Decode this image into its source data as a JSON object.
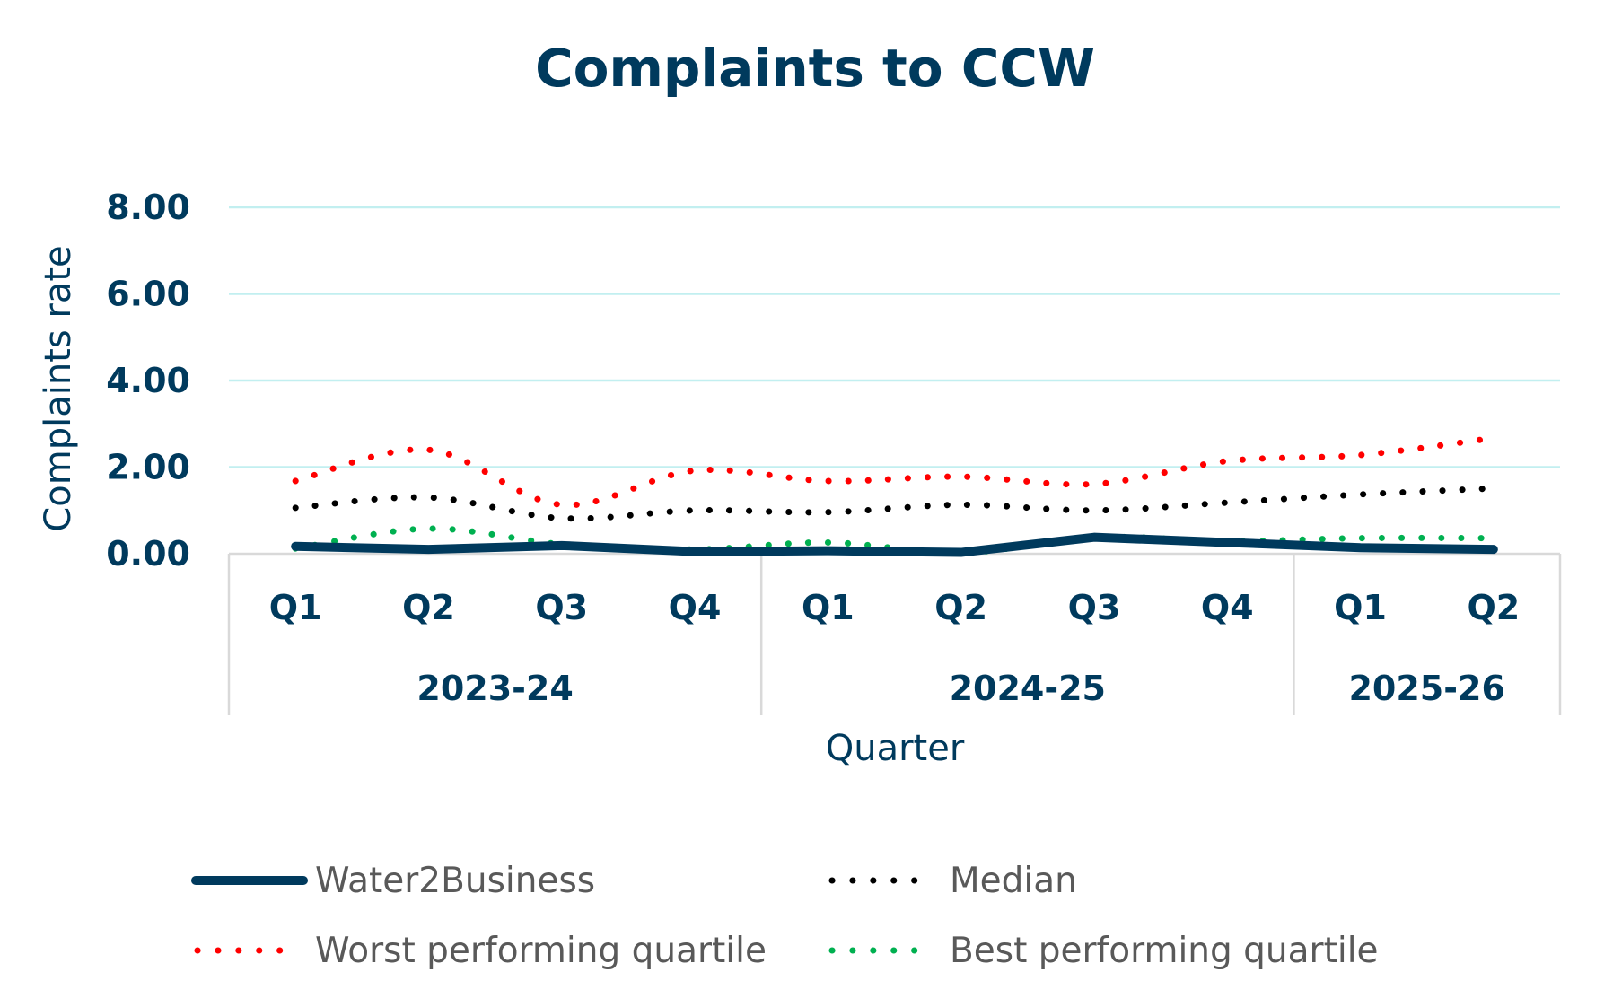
{
  "chart_data": {
    "type": "line",
    "title": "Complaints to CCW",
    "xlabel": "Quarter",
    "ylabel": "Complaints rate",
    "ylim": [
      0,
      8
    ],
    "yticks": [
      "0.00",
      "2.00",
      "4.00",
      "6.00",
      "8.00"
    ],
    "grid": true,
    "legend_placement": "bottom",
    "categories": [
      "Q1",
      "Q2",
      "Q3",
      "Q4",
      "Q1",
      "Q2",
      "Q3",
      "Q4",
      "Q1",
      "Q2"
    ],
    "groups": [
      {
        "label": "2023-24",
        "count": 4
      },
      {
        "label": "2024-25",
        "count": 4
      },
      {
        "label": "2025-26",
        "count": 2
      }
    ],
    "series": [
      {
        "name": "Water2Business",
        "color": "#003a5d",
        "style": "solid",
        "values": [
          0.17,
          0.1,
          0.19,
          0.05,
          0.07,
          0.03,
          0.38,
          0.26,
          0.14,
          0.1
        ]
      },
      {
        "name": "Median",
        "color": "#000000",
        "style": "dotted",
        "values": [
          1.06,
          1.3,
          0.82,
          1.0,
          0.96,
          1.13,
          1.0,
          1.18,
          1.37,
          1.51
        ]
      },
      {
        "name": "Worst performing quartile",
        "color": "#ff0000",
        "style": "dotted",
        "values": [
          1.68,
          2.4,
          1.13,
          1.92,
          1.68,
          1.78,
          1.61,
          2.14,
          2.28,
          2.67
        ]
      },
      {
        "name": "Best performing quartile",
        "color": "#00b050",
        "style": "dotted",
        "values": [
          0.12,
          0.58,
          0.22,
          0.1,
          0.26,
          0.02,
          0.38,
          0.29,
          0.36,
          0.36
        ]
      }
    ],
    "colors": {
      "gridline": "#c2eff0",
      "axis": "#d9d9d9",
      "text": "#003a5d"
    }
  }
}
